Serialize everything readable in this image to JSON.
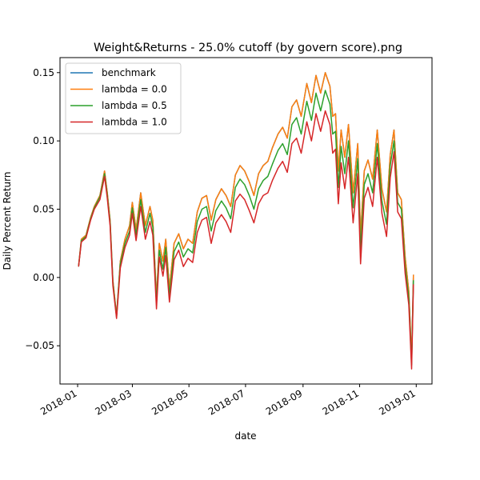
{
  "chart_data": {
    "type": "line",
    "title": "Weight&Returns - 25.0% cutoff (by govern score).png",
    "xlabel": "date",
    "ylabel": "Daily Percent Return",
    "xlim": [
      "2017-12-13",
      "2019-01-18"
    ],
    "ylim": [
      -0.078,
      0.161
    ],
    "x_ticks": [
      "2018-01-01",
      "2018-03-01",
      "2018-05-01",
      "2018-07-01",
      "2018-09-01",
      "2018-11-01",
      "2019-01-01"
    ],
    "x_tick_labels": [
      "2018-01",
      "2018-03",
      "2018-05",
      "2018-07",
      "2018-09",
      "2018-11",
      "2019-01"
    ],
    "y_ticks": [
      -0.05,
      0.0,
      0.05,
      0.1,
      0.15
    ],
    "y_tick_labels": [
      "−0.05",
      "0.00",
      "0.05",
      "0.10",
      "0.15"
    ],
    "grid": false,
    "legend_position": "upper left",
    "x": [
      "2018-01-02",
      "2018-01-05",
      "2018-01-10",
      "2018-01-15",
      "2018-01-19",
      "2018-01-25",
      "2018-01-30",
      "2018-02-02",
      "2018-02-05",
      "2018-02-08",
      "2018-02-12",
      "2018-02-16",
      "2018-02-21",
      "2018-02-26",
      "2018-03-01",
      "2018-03-05",
      "2018-03-10",
      "2018-03-15",
      "2018-03-20",
      "2018-03-23",
      "2018-03-27",
      "2018-03-30",
      "2018-04-03",
      "2018-04-06",
      "2018-04-10",
      "2018-04-15",
      "2018-04-20",
      "2018-04-25",
      "2018-04-30",
      "2018-05-05",
      "2018-05-10",
      "2018-05-15",
      "2018-05-20",
      "2018-05-25",
      "2018-05-30",
      "2018-06-05",
      "2018-06-10",
      "2018-06-15",
      "2018-06-20",
      "2018-06-25",
      "2018-06-30",
      "2018-07-05",
      "2018-07-10",
      "2018-07-15",
      "2018-07-20",
      "2018-07-25",
      "2018-07-30",
      "2018-08-05",
      "2018-08-10",
      "2018-08-15",
      "2018-08-20",
      "2018-08-25",
      "2018-08-30",
      "2018-09-05",
      "2018-09-10",
      "2018-09-15",
      "2018-09-20",
      "2018-09-25",
      "2018-09-30",
      "2018-10-03",
      "2018-10-06",
      "2018-10-09",
      "2018-10-12",
      "2018-10-16",
      "2018-10-20",
      "2018-10-25",
      "2018-10-30",
      "2018-11-02",
      "2018-11-06",
      "2018-11-10",
      "2018-11-15",
      "2018-11-20",
      "2018-11-25",
      "2018-11-30",
      "2018-12-04",
      "2018-12-08",
      "2018-12-12",
      "2018-12-16",
      "2018-12-20",
      "2018-12-24",
      "2018-12-27",
      "2018-12-29"
    ],
    "series": [
      {
        "name": "benchmark",
        "color": "#1f77b4",
        "values": [
          0.008,
          0.028,
          0.031,
          0.044,
          0.052,
          0.06,
          0.078,
          0.062,
          0.042,
          -0.002,
          -0.028,
          0.012,
          0.028,
          0.038,
          0.055,
          0.035,
          0.062,
          0.038,
          0.052,
          0.042,
          -0.015,
          0.025,
          0.012,
          0.028,
          -0.008,
          0.025,
          0.032,
          0.021,
          0.028,
          0.025,
          0.048,
          0.058,
          0.06,
          0.042,
          0.057,
          0.065,
          0.06,
          0.052,
          0.075,
          0.082,
          0.078,
          0.07,
          0.06,
          0.076,
          0.082,
          0.085,
          0.095,
          0.105,
          0.11,
          0.102,
          0.125,
          0.13,
          0.118,
          0.142,
          0.128,
          0.148,
          0.135,
          0.15,
          0.14,
          0.118,
          0.12,
          0.078,
          0.108,
          0.088,
          0.112,
          0.062,
          0.098,
          0.03,
          0.078,
          0.086,
          0.072,
          0.108,
          0.065,
          0.048,
          0.09,
          0.108,
          0.062,
          0.057,
          0.015,
          -0.01,
          -0.06,
          0.002
        ]
      },
      {
        "name": "lambda = 0.0",
        "color": "#ff7f0e",
        "values": [
          0.008,
          0.028,
          0.031,
          0.044,
          0.052,
          0.06,
          0.078,
          0.062,
          0.042,
          -0.002,
          -0.028,
          0.012,
          0.028,
          0.038,
          0.055,
          0.035,
          0.062,
          0.038,
          0.052,
          0.042,
          -0.015,
          0.025,
          0.012,
          0.028,
          -0.008,
          0.025,
          0.032,
          0.021,
          0.028,
          0.025,
          0.048,
          0.058,
          0.06,
          0.042,
          0.057,
          0.065,
          0.06,
          0.052,
          0.075,
          0.082,
          0.078,
          0.07,
          0.06,
          0.076,
          0.082,
          0.085,
          0.095,
          0.105,
          0.11,
          0.102,
          0.125,
          0.13,
          0.118,
          0.142,
          0.128,
          0.148,
          0.135,
          0.15,
          0.14,
          0.118,
          0.12,
          0.078,
          0.108,
          0.088,
          0.112,
          0.062,
          0.098,
          0.03,
          0.078,
          0.086,
          0.072,
          0.108,
          0.065,
          0.048,
          0.09,
          0.108,
          0.062,
          0.057,
          0.015,
          -0.01,
          -0.06,
          0.002
        ]
      },
      {
        "name": "lambda = 0.5",
        "color": "#2ca02c",
        "values": [
          0.008,
          0.027,
          0.03,
          0.043,
          0.051,
          0.059,
          0.076,
          0.06,
          0.04,
          -0.004,
          -0.029,
          0.01,
          0.025,
          0.034,
          0.051,
          0.031,
          0.057,
          0.033,
          0.047,
          0.037,
          -0.019,
          0.02,
          0.006,
          0.022,
          -0.013,
          0.019,
          0.026,
          0.015,
          0.021,
          0.018,
          0.041,
          0.05,
          0.052,
          0.034,
          0.049,
          0.056,
          0.051,
          0.043,
          0.066,
          0.072,
          0.068,
          0.06,
          0.05,
          0.065,
          0.071,
          0.074,
          0.083,
          0.093,
          0.098,
          0.09,
          0.112,
          0.117,
          0.105,
          0.129,
          0.115,
          0.135,
          0.122,
          0.137,
          0.127,
          0.105,
          0.107,
          0.066,
          0.096,
          0.076,
          0.1,
          0.051,
          0.087,
          0.02,
          0.068,
          0.076,
          0.062,
          0.098,
          0.056,
          0.039,
          0.082,
          0.1,
          0.055,
          0.05,
          0.009,
          -0.015,
          -0.064,
          -0.002
        ]
      },
      {
        "name": "lambda = 1.0",
        "color": "#d62728",
        "values": [
          0.008,
          0.026,
          0.029,
          0.042,
          0.05,
          0.057,
          0.074,
          0.058,
          0.038,
          -0.006,
          -0.03,
          0.007,
          0.022,
          0.031,
          0.047,
          0.027,
          0.052,
          0.028,
          0.041,
          0.031,
          -0.023,
          0.015,
          0.001,
          0.016,
          -0.018,
          0.013,
          0.02,
          0.008,
          0.014,
          0.011,
          0.033,
          0.042,
          0.044,
          0.025,
          0.04,
          0.046,
          0.041,
          0.033,
          0.056,
          0.061,
          0.057,
          0.049,
          0.04,
          0.054,
          0.06,
          0.062,
          0.071,
          0.08,
          0.085,
          0.077,
          0.098,
          0.102,
          0.091,
          0.114,
          0.1,
          0.12,
          0.107,
          0.122,
          0.112,
          0.091,
          0.094,
          0.054,
          0.084,
          0.065,
          0.088,
          0.04,
          0.076,
          0.01,
          0.058,
          0.066,
          0.052,
          0.088,
          0.047,
          0.03,
          0.073,
          0.092,
          0.048,
          0.043,
          0.003,
          -0.02,
          -0.067,
          -0.005
        ]
      }
    ]
  }
}
